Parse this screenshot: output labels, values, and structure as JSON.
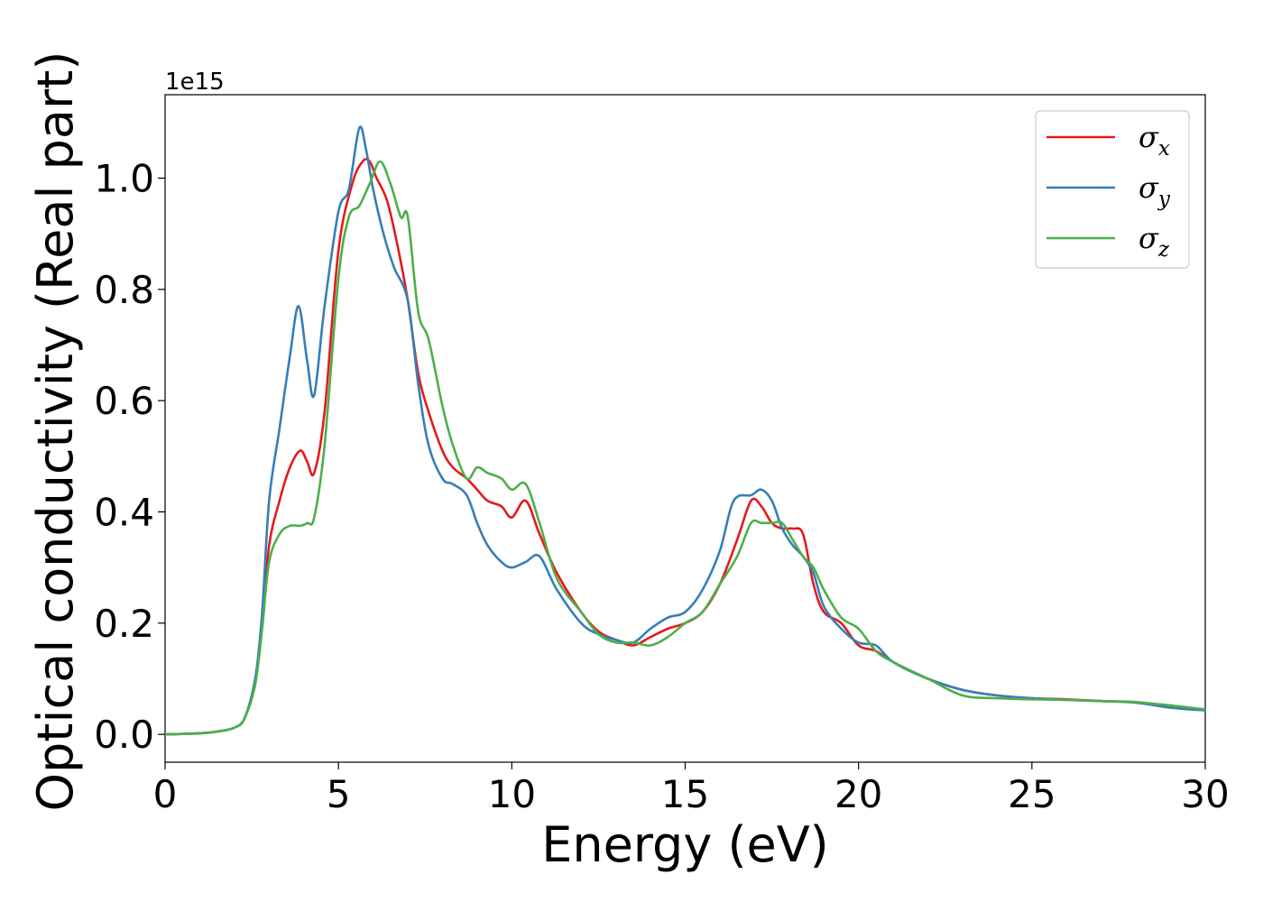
{
  "chart_data": {
    "type": "line",
    "title": "",
    "xlabel": "Energy (eV)",
    "ylabel": "Optical conductivity (Real part)",
    "y_offset_label": "1e15",
    "xlim": [
      0,
      30
    ],
    "ylim": [
      -0.05,
      1.15
    ],
    "x_ticks": [
      0,
      5,
      10,
      15,
      20,
      25,
      30
    ],
    "x_tick_labels": [
      "0",
      "5",
      "10",
      "15",
      "20",
      "25",
      "30"
    ],
    "y_ticks": [
      0.0,
      0.2,
      0.4,
      0.6,
      0.8,
      1.0
    ],
    "y_tick_labels": [
      "0.0",
      "0.2",
      "0.4",
      "0.6",
      "0.8",
      "1.0"
    ],
    "grid": false,
    "legend_position": "top-right",
    "series": [
      {
        "name": "σx",
        "legend_base": "σ",
        "legend_sub": "x",
        "color": "#e41a1c",
        "x": [
          0,
          1,
          1.5,
          2,
          2.3,
          2.6,
          2.8,
          3.0,
          3.3,
          3.6,
          3.9,
          4.1,
          4.3,
          4.6,
          5.0,
          5.4,
          5.7,
          5.9,
          6.1,
          6.4,
          6.7,
          7.0,
          7.3,
          7.6,
          8.0,
          8.3,
          8.7,
          9.0,
          9.3,
          9.7,
          10.0,
          10.4,
          10.8,
          11.3,
          12.0,
          12.5,
          13.0,
          13.5,
          14.0,
          14.5,
          15.0,
          15.5,
          16.0,
          16.5,
          16.9,
          17.2,
          17.5,
          17.8,
          18.1,
          18.4,
          18.7,
          19.0,
          19.5,
          20.0,
          20.5,
          21.0,
          22.0,
          23.0,
          24.0,
          25.0,
          26.0,
          27.0,
          28.0,
          29.0,
          30.0
        ],
        "y": [
          0.0,
          0.002,
          0.005,
          0.012,
          0.03,
          0.1,
          0.2,
          0.34,
          0.42,
          0.48,
          0.51,
          0.49,
          0.47,
          0.58,
          0.87,
          0.99,
          1.03,
          1.03,
          1.0,
          0.96,
          0.88,
          0.78,
          0.65,
          0.58,
          0.51,
          0.48,
          0.46,
          0.44,
          0.42,
          0.41,
          0.39,
          0.42,
          0.36,
          0.29,
          0.22,
          0.185,
          0.17,
          0.16,
          0.175,
          0.19,
          0.2,
          0.22,
          0.27,
          0.35,
          0.42,
          0.41,
          0.38,
          0.37,
          0.37,
          0.36,
          0.27,
          0.22,
          0.2,
          0.16,
          0.15,
          0.13,
          0.1,
          0.08,
          0.07,
          0.065,
          0.063,
          0.06,
          0.058,
          0.05,
          0.045
        ]
      },
      {
        "name": "σy",
        "legend_base": "σ",
        "legend_sub": "y",
        "color": "#377eb8",
        "x": [
          0,
          1,
          1.5,
          2,
          2.3,
          2.6,
          2.8,
          3.0,
          3.3,
          3.6,
          3.85,
          4.1,
          4.3,
          4.6,
          5.0,
          5.3,
          5.6,
          5.8,
          6.0,
          6.3,
          6.6,
          7.0,
          7.3,
          7.6,
          8.0,
          8.3,
          8.7,
          9.0,
          9.3,
          9.7,
          10.0,
          10.4,
          10.8,
          11.3,
          12.0,
          12.5,
          13.0,
          13.5,
          14.0,
          14.5,
          15.0,
          15.5,
          16.0,
          16.4,
          16.9,
          17.2,
          17.5,
          17.8,
          18.1,
          18.4,
          18.7,
          19.0,
          19.5,
          20.0,
          20.5,
          21.0,
          22.0,
          23.0,
          24.0,
          25.0,
          26.0,
          27.0,
          28.0,
          29.0,
          30.0
        ],
        "y": [
          0.0,
          0.002,
          0.005,
          0.012,
          0.03,
          0.1,
          0.22,
          0.42,
          0.55,
          0.68,
          0.77,
          0.67,
          0.61,
          0.77,
          0.94,
          0.98,
          1.09,
          1.05,
          0.98,
          0.9,
          0.84,
          0.78,
          0.63,
          0.52,
          0.46,
          0.45,
          0.43,
          0.38,
          0.34,
          0.31,
          0.3,
          0.31,
          0.32,
          0.26,
          0.2,
          0.18,
          0.17,
          0.165,
          0.19,
          0.21,
          0.22,
          0.26,
          0.33,
          0.42,
          0.43,
          0.44,
          0.42,
          0.37,
          0.34,
          0.32,
          0.29,
          0.23,
          0.19,
          0.165,
          0.16,
          0.13,
          0.1,
          0.08,
          0.07,
          0.065,
          0.062,
          0.06,
          0.057,
          0.048,
          0.043
        ]
      },
      {
        "name": "σz",
        "legend_base": "σ",
        "legend_sub": "z",
        "color": "#4daf4a",
        "x": [
          0,
          1,
          1.5,
          2,
          2.3,
          2.6,
          2.8,
          3.0,
          3.3,
          3.6,
          3.9,
          4.1,
          4.3,
          4.6,
          5.0,
          5.3,
          5.6,
          5.9,
          6.2,
          6.5,
          6.8,
          7.0,
          7.3,
          7.6,
          8.0,
          8.3,
          8.7,
          9.0,
          9.3,
          9.7,
          10.0,
          10.4,
          10.8,
          11.3,
          12.0,
          12.5,
          13.0,
          13.5,
          14.0,
          14.5,
          15.0,
          15.5,
          16.0,
          16.5,
          16.9,
          17.2,
          17.5,
          17.8,
          18.1,
          18.4,
          18.7,
          19.0,
          19.5,
          20.0,
          20.5,
          21.0,
          22.0,
          23.0,
          24.0,
          25.0,
          26.0,
          27.0,
          28.0,
          29.0,
          30.0
        ],
        "y": [
          0.0,
          0.002,
          0.005,
          0.012,
          0.03,
          0.09,
          0.19,
          0.31,
          0.36,
          0.375,
          0.375,
          0.38,
          0.39,
          0.52,
          0.82,
          0.93,
          0.95,
          0.99,
          1.03,
          0.99,
          0.93,
          0.93,
          0.76,
          0.71,
          0.59,
          0.52,
          0.46,
          0.48,
          0.47,
          0.46,
          0.44,
          0.45,
          0.38,
          0.28,
          0.22,
          0.18,
          0.165,
          0.165,
          0.16,
          0.175,
          0.2,
          0.22,
          0.27,
          0.32,
          0.38,
          0.38,
          0.38,
          0.38,
          0.35,
          0.32,
          0.3,
          0.26,
          0.21,
          0.19,
          0.15,
          0.13,
          0.1,
          0.07,
          0.065,
          0.063,
          0.062,
          0.06,
          0.058,
          0.052,
          0.045
        ]
      }
    ]
  }
}
